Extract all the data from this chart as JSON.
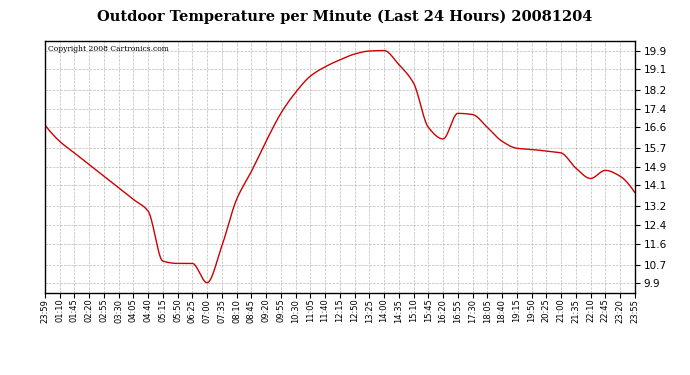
{
  "title": "Outdoor Temperature per Minute (Last 24 Hours) 20081204",
  "copyright_text": "Copyright 2008 Cartronics.com",
  "line_color": "#cc0000",
  "background_color": "#ffffff",
  "plot_bg_color": "#ffffff",
  "grid_color": "#aaaaaa",
  "yticks": [
    9.9,
    10.7,
    11.6,
    12.4,
    13.2,
    14.1,
    14.9,
    15.7,
    16.6,
    17.4,
    18.2,
    19.1,
    19.9
  ],
  "ylim": [
    9.5,
    20.3
  ],
  "xtick_labels": [
    "23:59",
    "01:10",
    "01:45",
    "02:20",
    "02:55",
    "03:30",
    "04:05",
    "04:40",
    "05:15",
    "05:50",
    "06:25",
    "07:00",
    "07:35",
    "08:10",
    "08:45",
    "09:20",
    "09:55",
    "10:30",
    "11:05",
    "11:40",
    "12:15",
    "12:50",
    "13:25",
    "14:00",
    "14:35",
    "15:10",
    "15:45",
    "16:20",
    "16:55",
    "17:30",
    "18:05",
    "18:40",
    "19:15",
    "19:50",
    "20:25",
    "21:00",
    "21:35",
    "22:10",
    "22:45",
    "23:20",
    "23:55"
  ],
  "keypoints": {
    "23:59": 16.7,
    "01:10": 16.0,
    "01:45": 15.5,
    "02:20": 15.0,
    "02:55": 14.5,
    "03:30": 14.0,
    "04:05": 13.5,
    "04:40": 13.0,
    "05:15": 10.85,
    "05:50": 10.75,
    "06:25": 10.75,
    "07:00": 9.92,
    "07:35": 11.5,
    "08:10": 13.5,
    "08:45": 14.7,
    "09:20": 16.0,
    "09:55": 17.2,
    "10:30": 18.1,
    "11:05": 18.8,
    "11:40": 19.2,
    "12:15": 19.5,
    "12:50": 19.75,
    "13:25": 19.88,
    "14:00": 19.9,
    "14:35": 19.3,
    "15:10": 18.5,
    "15:45": 16.6,
    "16:20": 16.1,
    "16:55": 17.2,
    "17:30": 17.15,
    "18:05": 16.6,
    "18:40": 16.0,
    "19:15": 15.7,
    "19:50": 15.65,
    "20:25": 15.58,
    "21:00": 15.5,
    "21:35": 14.85,
    "22:10": 14.4,
    "22:45": 14.75,
    "23:20": 14.5,
    "23:55": 13.8
  }
}
